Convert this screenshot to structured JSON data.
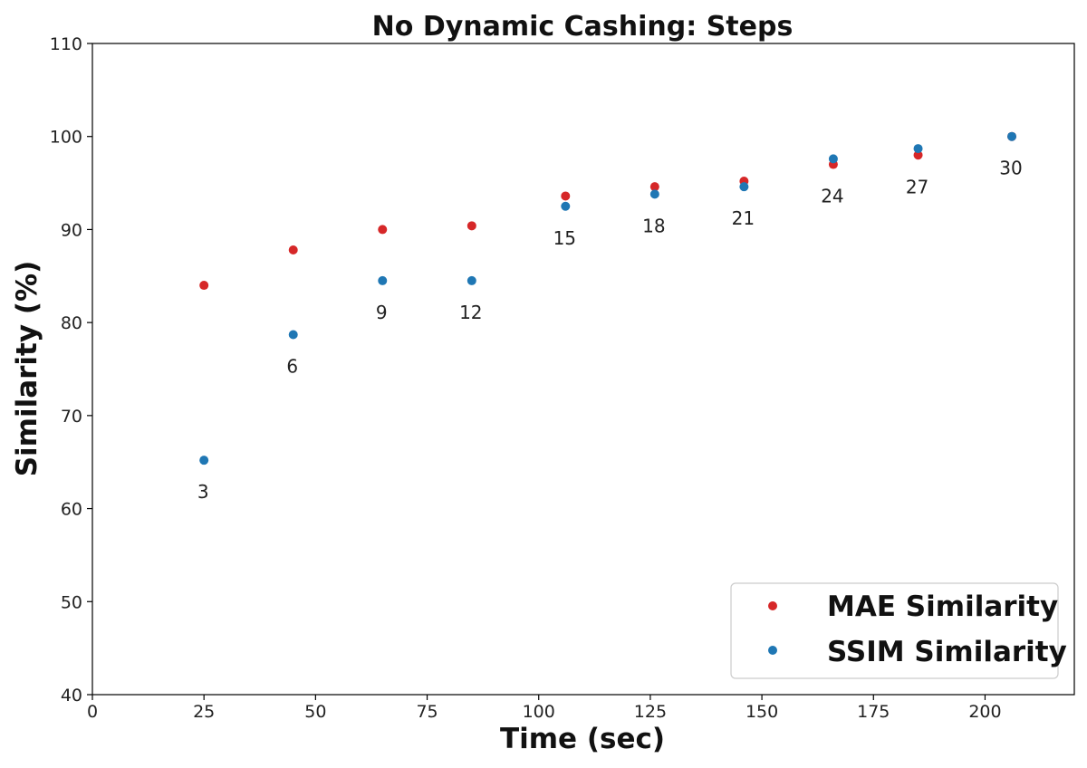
{
  "chart_data": {
    "type": "scatter",
    "title": "No Dynamic Cashing: Steps",
    "xlabel": "Time (sec)",
    "ylabel": "Similarity (%)",
    "xlim": [
      0,
      220
    ],
    "ylim": [
      40,
      110
    ],
    "xticks": [
      0,
      25,
      50,
      75,
      100,
      125,
      150,
      175,
      200
    ],
    "yticks": [
      40,
      50,
      60,
      70,
      80,
      90,
      100,
      110
    ],
    "grid": false,
    "legend_position": "lower-right",
    "series": [
      {
        "name": "MAE Similarity",
        "color": "#d62728",
        "x": [
          25,
          45,
          65,
          85,
          106,
          126,
          146,
          166,
          185,
          206
        ],
        "y": [
          84.0,
          87.8,
          90.0,
          90.4,
          93.6,
          94.6,
          95.2,
          97.0,
          98.0,
          100.0
        ]
      },
      {
        "name": "SSIM Similarity",
        "color": "#1f77b4",
        "x": [
          25,
          45,
          65,
          85,
          106,
          126,
          146,
          166,
          185,
          206
        ],
        "y": [
          65.2,
          78.7,
          84.5,
          84.5,
          92.5,
          93.8,
          94.6,
          97.6,
          98.7,
          100.0
        ]
      }
    ],
    "annotations": [
      {
        "text": "3",
        "x": 25,
        "y": 65.2
      },
      {
        "text": "6",
        "x": 45,
        "y": 78.7
      },
      {
        "text": "9",
        "x": 65,
        "y": 84.5
      },
      {
        "text": "12",
        "x": 85,
        "y": 84.5
      },
      {
        "text": "15",
        "x": 106,
        "y": 92.5
      },
      {
        "text": "18",
        "x": 126,
        "y": 93.8
      },
      {
        "text": "21",
        "x": 146,
        "y": 94.6
      },
      {
        "text": "24",
        "x": 166,
        "y": 97.0
      },
      {
        "text": "27",
        "x": 185,
        "y": 98.0
      },
      {
        "text": "30",
        "x": 206,
        "y": 100.0
      }
    ]
  }
}
